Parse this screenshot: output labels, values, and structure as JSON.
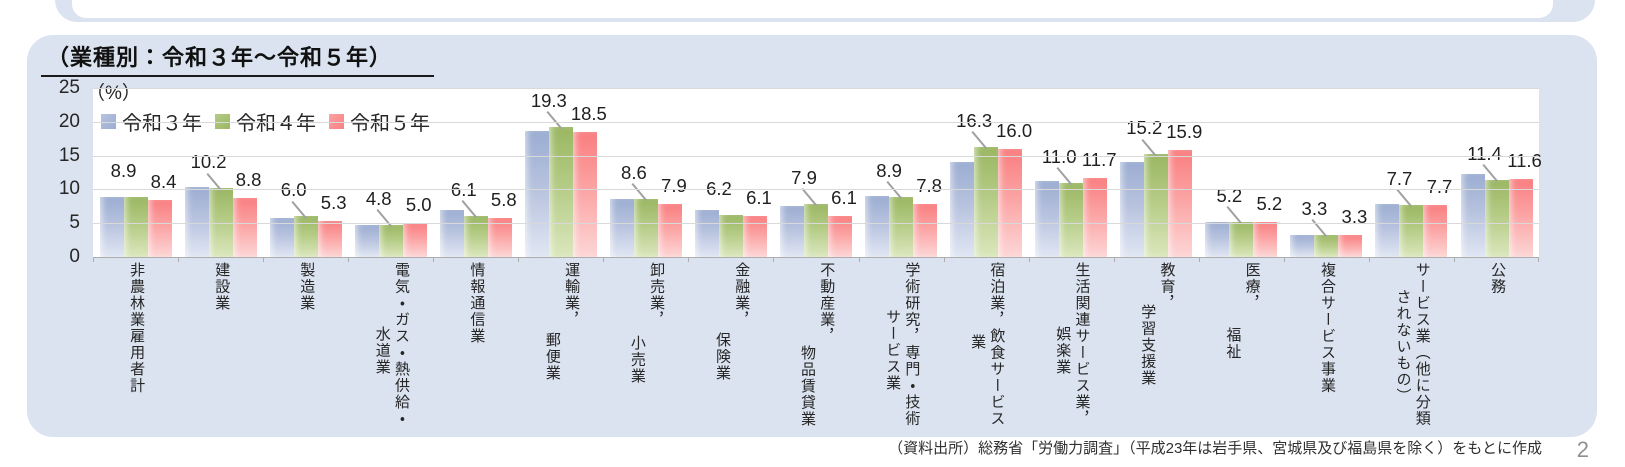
{
  "panel": {
    "title": "（業種別：令和３年～令和５年）"
  },
  "footer": {
    "source_note": "（資料出所）総務省「労働力調査」（平成23年は岩手県、宮城県及び福島県を除く）をもとに作成",
    "page_number": "2"
  },
  "chart_data": {
    "type": "bar",
    "title": "（業種別：令和３年～令和５年）",
    "unit_label": "（%）",
    "ylabel": "%",
    "ylim": [
      0,
      25
    ],
    "yticks": [
      0,
      5,
      10,
      15,
      20,
      25
    ],
    "grid": true,
    "legend_position": "top-left inside plot",
    "categories": [
      [
        "非農林業雇用者計"
      ],
      [
        "建設業"
      ],
      [
        "製造業"
      ],
      [
        "電気・ガス・熱供給・",
        "水道業"
      ],
      [
        "情報通信業"
      ],
      [
        "運輸業，",
        "郵便業"
      ],
      [
        "卸売業，",
        "小売業"
      ],
      [
        "金融業，",
        "保険業"
      ],
      [
        "不動産業，",
        "物品賃貸業"
      ],
      [
        "学術研究，専門・技術",
        "サービス業"
      ],
      [
        "宿泊業，飲食サービス",
        "業"
      ],
      [
        "生活関連サービス業，",
        "娯楽業"
      ],
      [
        "教育，",
        "学習支援業"
      ],
      [
        "医療，",
        "福祉"
      ],
      [
        "複合サービス事業"
      ],
      [
        "サービス業（他に分類",
        "されないもの）"
      ],
      [
        "公務"
      ]
    ],
    "label_col2_offsets": [
      null,
      null,
      null,
      64,
      null,
      70,
      73,
      70,
      83,
      47,
      72,
      64,
      42,
      65,
      null,
      27,
      null
    ],
    "series": [
      {
        "name": "令和３年",
        "labeled": false,
        "color_top": "#9badd2",
        "color_mid": "#b7c2de",
        "color_bottom": "#e0e6f3",
        "values": [
          8.9,
          10.3,
          5.8,
          4.8,
          6.9,
          18.7,
          8.6,
          6.9,
          7.6,
          9.0,
          14.1,
          11.2,
          14.0,
          5.2,
          3.2,
          7.9,
          12.3
        ]
      },
      {
        "name": "令和４年",
        "labeled": true,
        "color_top": "#9ab762",
        "color_mid": "#b4cb85",
        "color_bottom": "#dbe7bd",
        "values": [
          8.9,
          10.2,
          6.0,
          4.8,
          6.1,
          19.3,
          8.6,
          6.2,
          7.9,
          8.9,
          16.3,
          11.0,
          15.2,
          5.2,
          3.3,
          7.7,
          11.4
        ]
      },
      {
        "name": "令和５年",
        "labeled": true,
        "color_top": "#f97e80",
        "color_mid": "#fba3a3",
        "color_bottom": "#fdd6d6",
        "values": [
          8.4,
          8.8,
          5.3,
          5.0,
          5.8,
          18.5,
          7.9,
          6.1,
          6.1,
          7.8,
          16.0,
          11.7,
          15.9,
          5.2,
          3.3,
          7.7,
          11.6
        ]
      }
    ],
    "label_leaders_reiwa4": [
      false,
      true,
      true,
      true,
      true,
      true,
      true,
      false,
      true,
      true,
      true,
      true,
      true,
      true,
      true,
      true,
      true
    ],
    "colors": {
      "panel_background": "#dbe3f0",
      "plot_background": "#ffffff",
      "gridline": "#d9d9d9",
      "axis": "#adadad",
      "leader_line": "#a0a0a0",
      "text": "#262626",
      "page_number": "#909090"
    }
  }
}
